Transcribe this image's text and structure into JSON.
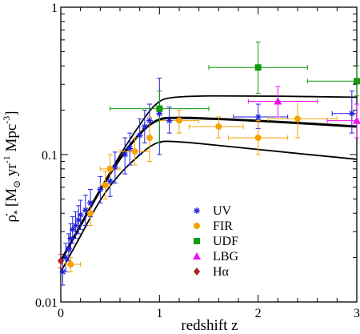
{
  "chart_data": {
    "type": "scatter",
    "xlabel": "redshift z",
    "ylabel": "ρ̇* [M☉ yr⁻¹ Mpc⁻³]",
    "ylabel_main": "ρ̇",
    "ylabel_sub": "*",
    "ylabel_units": "[M",
    "ylabel_units_sub": "⊙",
    "ylabel_yr": " yr",
    "ylabel_yr_exp": "-1",
    "ylabel_mpc": " Mpc",
    "ylabel_mpc_exp": "-3",
    "ylabel_close": "]",
    "xlim": [
      0,
      3
    ],
    "ylim": [
      0.01,
      1
    ],
    "yscale": "log",
    "x_ticks": [
      0,
      1,
      2,
      3
    ],
    "x_tick_labels": [
      "0",
      "1",
      "2",
      "3"
    ],
    "y_ticks": [
      0.01,
      0.1,
      1
    ],
    "y_tick_labels": [
      "0.01",
      "0.1",
      "1"
    ],
    "legend_position": "bottom-center",
    "series": [
      {
        "name": "UV",
        "color": "#2222dd",
        "marker": "star",
        "points": [
          {
            "x": 0.02,
            "y": 0.016,
            "ylo": 0.013,
            "yhi": 0.02
          },
          {
            "x": 0.05,
            "y": 0.02,
            "ylo": 0.016,
            "yhi": 0.025
          },
          {
            "x": 0.08,
            "y": 0.023,
            "ylo": 0.019,
            "yhi": 0.029
          },
          {
            "x": 0.1,
            "y": 0.027,
            "ylo": 0.022,
            "yhi": 0.034
          },
          {
            "x": 0.12,
            "y": 0.031,
            "ylo": 0.025,
            "yhi": 0.038
          },
          {
            "x": 0.15,
            "y": 0.033,
            "ylo": 0.027,
            "yhi": 0.041
          },
          {
            "x": 0.18,
            "y": 0.036,
            "ylo": 0.029,
            "yhi": 0.045
          },
          {
            "x": 0.2,
            "y": 0.039,
            "ylo": 0.031,
            "yhi": 0.049
          },
          {
            "x": 0.25,
            "y": 0.042,
            "ylo": 0.033,
            "yhi": 0.053
          },
          {
            "x": 0.3,
            "y": 0.047,
            "ylo": 0.038,
            "yhi": 0.058
          },
          {
            "x": 0.4,
            "y": 0.058,
            "ylo": 0.047,
            "yhi": 0.071
          },
          {
            "x": 0.5,
            "y": 0.066,
            "ylo": 0.052,
            "yhi": 0.083
          },
          {
            "x": 0.55,
            "y": 0.082,
            "ylo": 0.064,
            "yhi": 0.104
          },
          {
            "x": 0.65,
            "y": 0.1,
            "ylo": 0.074,
            "yhi": 0.13
          },
          {
            "x": 0.7,
            "y": 0.11,
            "ylo": 0.085,
            "yhi": 0.14
          },
          {
            "x": 0.8,
            "y": 0.135,
            "ylo": 0.1,
            "yhi": 0.175
          },
          {
            "x": 0.85,
            "y": 0.155,
            "ylo": 0.12,
            "yhi": 0.2
          },
          {
            "x": 0.9,
            "y": 0.17,
            "ylo": 0.13,
            "yhi": 0.22
          },
          {
            "x": 1.0,
            "y": 0.19,
            "ylo": 0.1,
            "yhi": 0.33
          },
          {
            "x": 1.1,
            "y": 0.17,
            "ylo": 0.14,
            "yhi": 0.21
          },
          {
            "x": 2.0,
            "y": 0.18,
            "ylo": 0.15,
            "yhi": 0.22,
            "xlo": 1.75,
            "xhi": 2.3
          },
          {
            "x": 2.95,
            "y": 0.19,
            "ylo": 0.14,
            "yhi": 0.27,
            "xlo": 2.75,
            "xhi": 3.0
          }
        ]
      },
      {
        "name": "FIR",
        "color": "#f5a300",
        "marker": "circle",
        "points": [
          {
            "x": 0.1,
            "y": 0.018,
            "ylo": 0.016,
            "yhi": 0.02,
            "xlo": 0.05,
            "xhi": 0.2
          },
          {
            "x": 0.3,
            "y": 0.04,
            "ylo": 0.033,
            "yhi": 0.048
          },
          {
            "x": 0.45,
            "y": 0.062,
            "ylo": 0.05,
            "yhi": 0.077,
            "xlo": 0.4,
            "xhi": 0.5
          },
          {
            "x": 0.5,
            "y": 0.08,
            "ylo": 0.064,
            "yhi": 0.1,
            "xlo": 0.4,
            "xhi": 0.6
          },
          {
            "x": 0.75,
            "y": 0.105,
            "ylo": 0.085,
            "yhi": 0.13,
            "xlo": 0.6,
            "xhi": 0.9
          },
          {
            "x": 0.9,
            "y": 0.13,
            "ylo": 0.09,
            "yhi": 0.18
          },
          {
            "x": 1.2,
            "y": 0.17,
            "ylo": 0.14,
            "yhi": 0.2,
            "xlo": 1.0,
            "xhi": 1.4
          },
          {
            "x": 1.6,
            "y": 0.155,
            "ylo": 0.13,
            "yhi": 0.18,
            "xlo": 1.3,
            "xhi": 1.85
          },
          {
            "x": 2.0,
            "y": 0.13,
            "ylo": 0.1,
            "yhi": 0.17,
            "xlo": 1.7,
            "xhi": 2.3
          },
          {
            "x": 2.4,
            "y": 0.175,
            "ylo": 0.13,
            "yhi": 0.23,
            "xlo": 2.1,
            "xhi": 2.8
          }
        ]
      },
      {
        "name": "UDF",
        "color": "#119911",
        "marker": "square",
        "points": [
          {
            "x": 1.0,
            "y": 0.205,
            "ylo": 0.12,
            "yhi": 0.27,
            "xlo": 0.5,
            "xhi": 1.5
          },
          {
            "x": 2.0,
            "y": 0.39,
            "ylo": 0.26,
            "yhi": 0.58,
            "xlo": 1.5,
            "xhi": 2.5
          },
          {
            "x": 3.0,
            "y": 0.315,
            "ylo": 0.25,
            "yhi": 0.4,
            "xlo": 2.5,
            "xhi": 3.0
          }
        ]
      },
      {
        "name": "LBG",
        "color": "#ee11ee",
        "marker": "triangle",
        "points": [
          {
            "x": 2.2,
            "y": 0.23,
            "ylo": 0.18,
            "yhi": 0.29,
            "xlo": 1.9,
            "xhi": 2.6
          },
          {
            "x": 3.0,
            "y": 0.17,
            "ylo": 0.13,
            "yhi": 0.22,
            "xlo": 2.7,
            "xhi": 3.0
          }
        ]
      },
      {
        "name": "Hα",
        "color": "#aa2222",
        "marker": "diamond",
        "points": [
          {
            "x": 0.0,
            "y": 0.019,
            "ylo": 0.017,
            "yhi": 0.021
          }
        ]
      }
    ],
    "fit_lines": [
      {
        "role": "upper",
        "points": [
          [
            0,
            0.019
          ],
          [
            0.2,
            0.033
          ],
          [
            0.4,
            0.058
          ],
          [
            0.6,
            0.1
          ],
          [
            0.8,
            0.16
          ],
          [
            0.95,
            0.22
          ],
          [
            1.1,
            0.25
          ],
          [
            2.0,
            0.25
          ],
          [
            3.0,
            0.245
          ]
        ]
      },
      {
        "role": "best",
        "points": [
          [
            0,
            0.019
          ],
          [
            0.2,
            0.033
          ],
          [
            0.4,
            0.058
          ],
          [
            0.6,
            0.095
          ],
          [
            0.8,
            0.14
          ],
          [
            0.95,
            0.17
          ],
          [
            1.1,
            0.18
          ],
          [
            2.0,
            0.17
          ],
          [
            3.0,
            0.155
          ]
        ]
      },
      {
        "role": "lower",
        "points": [
          [
            0,
            0.016
          ],
          [
            0.2,
            0.028
          ],
          [
            0.4,
            0.05
          ],
          [
            0.6,
            0.075
          ],
          [
            0.8,
            0.1
          ],
          [
            0.95,
            0.12
          ],
          [
            1.1,
            0.125
          ],
          [
            2.0,
            0.108
          ],
          [
            3.0,
            0.093
          ]
        ]
      }
    ]
  }
}
